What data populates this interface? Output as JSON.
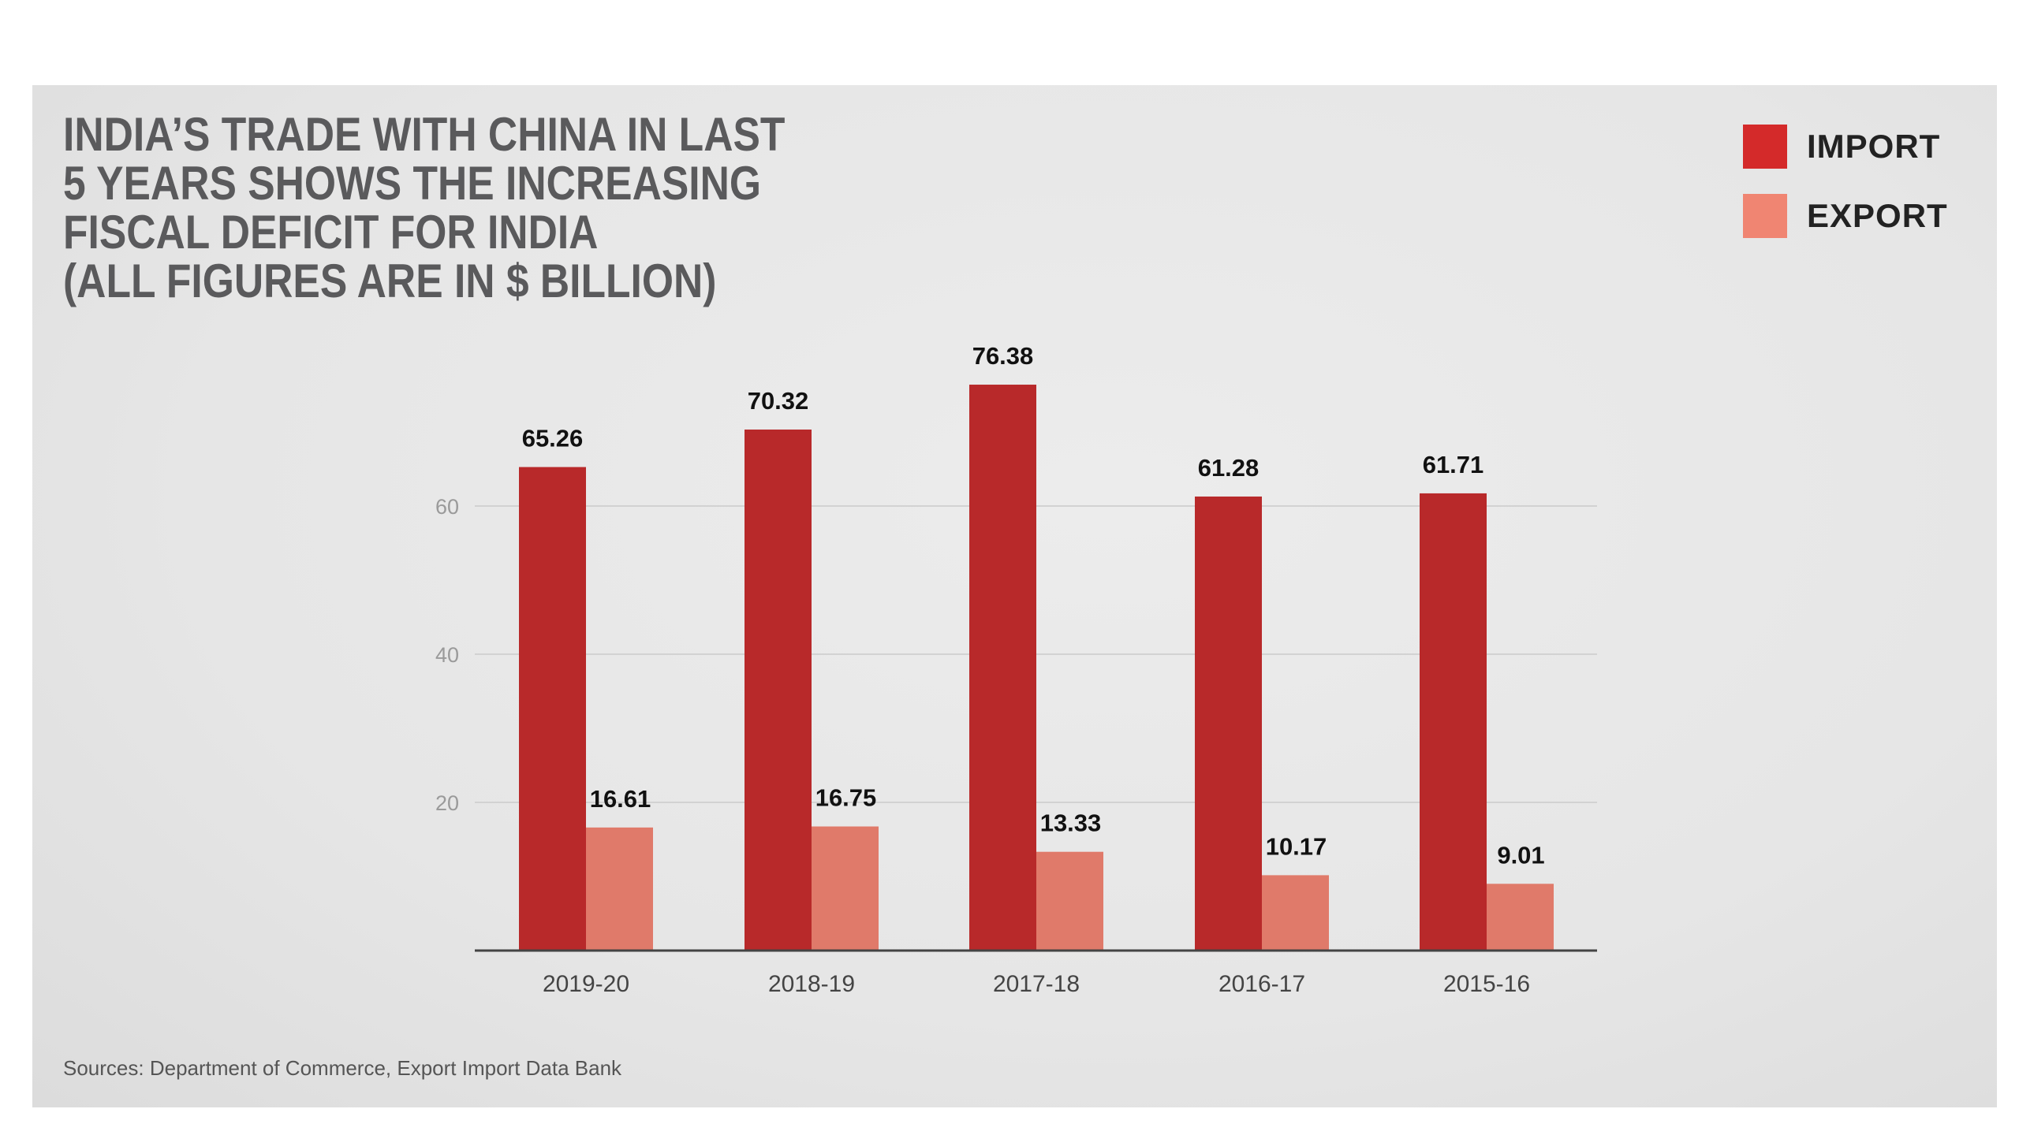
{
  "chart_data": {
    "type": "bar",
    "title_lines": [
      "INDIA’S TRADE WITH CHINA IN LAST",
      "5 YEARS SHOWS THE INCREASING",
      "FISCAL DEFICIT FOR INDIA",
      "(ALL FIGURES ARE IN $ BILLION)"
    ],
    "categories": [
      "2019-20",
      "2018-19",
      "2017-18",
      "2016-17",
      "2015-16"
    ],
    "series": [
      {
        "name": "IMPORT",
        "values": [
          65.26,
          70.32,
          76.38,
          61.28,
          61.71
        ],
        "color": "#b8292a",
        "legend_color": "#d42a2a"
      },
      {
        "name": "EXPORT",
        "values": [
          16.61,
          16.75,
          13.33,
          10.17,
          9.01
        ],
        "color": "#e07a6a",
        "legend_color": "#f08572"
      }
    ],
    "yticks": [
      20,
      40,
      60
    ],
    "ylim": [
      0,
      80
    ],
    "grid": true,
    "legend_position": "top-right",
    "source": "Sources: Department of Commerce, Export Import Data Bank"
  }
}
